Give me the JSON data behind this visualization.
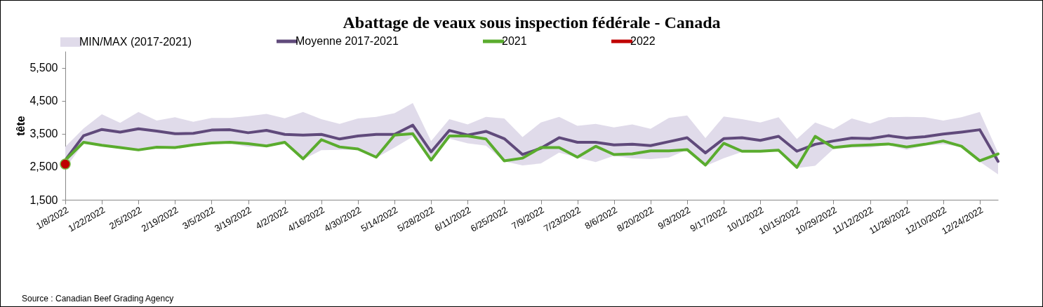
{
  "chart_data": {
    "type": "line",
    "title": "Abattage de veaux sous inspection fédérale - Canada",
    "ylabel": "tête",
    "categories": [
      "1/8/2022",
      null,
      "1/22/2022",
      null,
      "2/5/2022",
      null,
      "2/19/2022",
      null,
      "3/5/2022",
      null,
      "3/19/2022",
      null,
      "4/2/2022",
      null,
      "4/16/2022",
      null,
      "4/30/2022",
      null,
      "5/14/2022",
      null,
      "5/28/2022",
      null,
      "6/11/2022",
      null,
      "6/25/2022",
      null,
      "7/9/2022",
      null,
      "7/23/2022",
      null,
      "8/6/2022",
      null,
      "8/20/2022",
      null,
      "9/3/2022",
      null,
      "9/17/2022",
      null,
      "10/1/2022",
      null,
      "10/15/2022",
      null,
      "10/29/2022",
      null,
      "11/12/2022",
      null,
      "11/26/2022",
      null,
      "12/10/2022",
      null,
      "12/24/2022",
      null
    ],
    "ylim": [
      1500,
      6000
    ],
    "yticks": [
      {
        "value": 1500,
        "label": "1,500"
      },
      {
        "value": 2500,
        "label": "2,500"
      },
      {
        "value": 3500,
        "label": "3,500"
      },
      {
        "value": 4500,
        "label": "4,500"
      },
      {
        "value": 5500,
        "label": "5,500"
      }
    ],
    "legend": "top",
    "annotations": [
      "Source : Canadian Beef Grading Agency"
    ],
    "series": [
      {
        "name": "MIN/MAX (2017-2021)",
        "type": "area",
        "color": "#e0dbea",
        "lower": [
          2450,
          3210,
          3120,
          3050,
          2990,
          3060,
          3060,
          3140,
          3190,
          3210,
          3100,
          3110,
          3200,
          2720,
          3000,
          3010,
          3020,
          2770,
          3080,
          3410,
          2680,
          3350,
          3210,
          3140,
          2660,
          2540,
          2600,
          2930,
          2780,
          2640,
          2830,
          2750,
          2730,
          2780,
          3010,
          2520,
          2760,
          2950,
          2950,
          2970,
          2460,
          2530,
          3040,
          3080,
          3080,
          3160,
          3010,
          3140,
          3180,
          3100,
          2650,
          2270
        ],
        "values": [
          null,
          null,
          null,
          null,
          null,
          null,
          null,
          null,
          null,
          null,
          null,
          null,
          null,
          null,
          null,
          null,
          null,
          null,
          null,
          null,
          null,
          null,
          null,
          null,
          null,
          null,
          null,
          null,
          null,
          null,
          null,
          null,
          null,
          null,
          null,
          null,
          null,
          null,
          null,
          null,
          null,
          null,
          null,
          null,
          null,
          null,
          null,
          null,
          null,
          null,
          null,
          null
        ],
        "upper": [
          3100,
          3660,
          4090,
          3830,
          4160,
          3900,
          4000,
          3860,
          3980,
          3980,
          4030,
          4100,
          3970,
          4160,
          3940,
          3800,
          3960,
          4010,
          4120,
          4430,
          3280,
          3940,
          3780,
          4010,
          3960,
          3400,
          3840,
          4010,
          3740,
          3800,
          3690,
          3780,
          3650,
          3980,
          4050,
          3370,
          4020,
          3940,
          3840,
          4000,
          3340,
          3840,
          3640,
          3960,
          3810,
          4000,
          4010,
          4000,
          3900,
          4000,
          4160,
          2920
        ]
      },
      {
        "name": "Moyenne 2017-2021",
        "color": "#604a7b",
        "values": [
          2700,
          3440,
          3630,
          3550,
          3650,
          3580,
          3500,
          3510,
          3610,
          3620,
          3530,
          3600,
          3480,
          3460,
          3480,
          3340,
          3430,
          3480,
          3480,
          3760,
          2950,
          3600,
          3460,
          3570,
          3350,
          2870,
          3060,
          3380,
          3240,
          3240,
          3160,
          3180,
          3140,
          3260,
          3380,
          2920,
          3350,
          3380,
          3300,
          3420,
          2970,
          3180,
          3280,
          3370,
          3350,
          3440,
          3370,
          3410,
          3490,
          3550,
          3620,
          2660
        ]
      },
      {
        "name": "2021",
        "color": "#5aac2e",
        "values": [
          2700,
          3240,
          3150,
          3080,
          3010,
          3090,
          3080,
          3160,
          3220,
          3240,
          3200,
          3130,
          3240,
          2740,
          3320,
          3100,
          3040,
          2790,
          3460,
          3500,
          2700,
          3430,
          3430,
          3340,
          2680,
          2760,
          3080,
          3080,
          2790,
          3120,
          2870,
          2890,
          2980,
          2980,
          3020,
          2550,
          3210,
          2970,
          2970,
          3000,
          2480,
          3420,
          3080,
          3140,
          3160,
          3190,
          3100,
          3180,
          3280,
          3120,
          2680,
          2890
        ]
      },
      {
        "name": "2022",
        "color": "#c00000",
        "marker": "circle",
        "values": [
          2580,
          null,
          null,
          null,
          null,
          null,
          null,
          null,
          null,
          null,
          null,
          null,
          null,
          null,
          null,
          null,
          null,
          null,
          null,
          null,
          null,
          null,
          null,
          null,
          null,
          null,
          null,
          null,
          null,
          null,
          null,
          null,
          null,
          null,
          null,
          null,
          null,
          null,
          null,
          null,
          null,
          null,
          null,
          null,
          null,
          null,
          null,
          null,
          null,
          null,
          null,
          null
        ]
      }
    ]
  }
}
